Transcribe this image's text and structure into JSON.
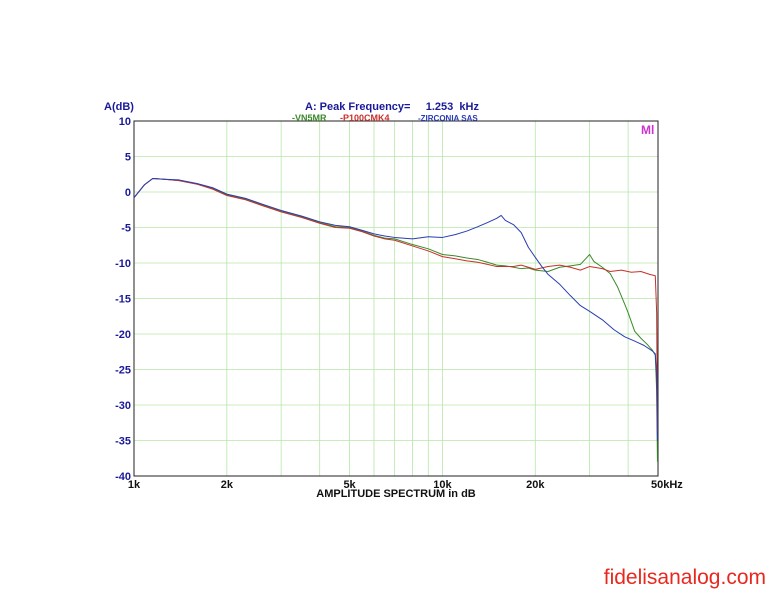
{
  "chart_data": {
    "type": "line",
    "title": "A: Peak Frequency=     1.253  kHz",
    "ylabel": "A(dB)",
    "xlabel": "AMPLITUDE SPECTRUM in dB",
    "x_scale": "log",
    "xlim": [
      1000,
      50000
    ],
    "ylim": [
      -40,
      10
    ],
    "x_ticks": [
      {
        "value": 1000,
        "label": "1k"
      },
      {
        "value": 2000,
        "label": "2k"
      },
      {
        "value": 5000,
        "label": "5k"
      },
      {
        "value": 10000,
        "label": "10k"
      },
      {
        "value": 20000,
        "label": "20k"
      },
      {
        "value": 50000,
        "label": "50kHz"
      }
    ],
    "y_ticks": [
      10,
      5,
      0,
      -5,
      -10,
      -15,
      -20,
      -25,
      -30,
      -35,
      -40
    ],
    "x_minor_ticks": [
      3000,
      4000,
      6000,
      7000,
      8000,
      9000,
      30000,
      40000
    ],
    "grid": true,
    "corner_label": "Ml",
    "series": [
      {
        "name": "-VN5MR",
        "color": "#3a8a2a",
        "points": [
          [
            1000,
            -0.8
          ],
          [
            1080,
            1.0
          ],
          [
            1150,
            1.9
          ],
          [
            1253,
            1.8
          ],
          [
            1400,
            1.6
          ],
          [
            1600,
            1.1
          ],
          [
            1800,
            0.5
          ],
          [
            2000,
            -0.4
          ],
          [
            2300,
            -1.0
          ],
          [
            2600,
            -1.8
          ],
          [
            3000,
            -2.7
          ],
          [
            3500,
            -3.5
          ],
          [
            4000,
            -4.3
          ],
          [
            4500,
            -4.9
          ],
          [
            5000,
            -5.0
          ],
          [
            5500,
            -5.5
          ],
          [
            6000,
            -6.1
          ],
          [
            6500,
            -6.5
          ],
          [
            7000,
            -6.6
          ],
          [
            8000,
            -7.4
          ],
          [
            9000,
            -8.0
          ],
          [
            10000,
            -8.8
          ],
          [
            11000,
            -9.0
          ],
          [
            12000,
            -9.3
          ],
          [
            13000,
            -9.5
          ],
          [
            14000,
            -9.9
          ],
          [
            15000,
            -10.3
          ],
          [
            16000,
            -10.4
          ],
          [
            17000,
            -10.6
          ],
          [
            18000,
            -10.8
          ],
          [
            19000,
            -10.7
          ],
          [
            20000,
            -11.0
          ],
          [
            22000,
            -11.2
          ],
          [
            24000,
            -10.6
          ],
          [
            26000,
            -10.4
          ],
          [
            28000,
            -10.2
          ],
          [
            29000,
            -9.5
          ],
          [
            30000,
            -8.8
          ],
          [
            31000,
            -9.8
          ],
          [
            33000,
            -10.6
          ],
          [
            35000,
            -11.5
          ],
          [
            37000,
            -13.4
          ],
          [
            39000,
            -15.8
          ],
          [
            40000,
            -17.0
          ],
          [
            42000,
            -19.6
          ],
          [
            44000,
            -20.6
          ],
          [
            46000,
            -21.4
          ],
          [
            48000,
            -22.3
          ],
          [
            49000,
            -23.0
          ],
          [
            49500,
            -28.0
          ],
          [
            49800,
            -38.0
          ]
        ]
      },
      {
        "name": "-P100CMK4",
        "color": "#c8302a",
        "points": [
          [
            1000,
            -0.8
          ],
          [
            1080,
            1.0
          ],
          [
            1150,
            1.9
          ],
          [
            1253,
            1.8
          ],
          [
            1400,
            1.6
          ],
          [
            1600,
            1.1
          ],
          [
            1800,
            0.4
          ],
          [
            2000,
            -0.5
          ],
          [
            2300,
            -1.1
          ],
          [
            2600,
            -1.9
          ],
          [
            3000,
            -2.8
          ],
          [
            3500,
            -3.6
          ],
          [
            4000,
            -4.4
          ],
          [
            4500,
            -5.0
          ],
          [
            5000,
            -5.1
          ],
          [
            5500,
            -5.6
          ],
          [
            6000,
            -6.2
          ],
          [
            6500,
            -6.6
          ],
          [
            7000,
            -6.8
          ],
          [
            8000,
            -7.6
          ],
          [
            9000,
            -8.3
          ],
          [
            10000,
            -9.1
          ],
          [
            11000,
            -9.4
          ],
          [
            12000,
            -9.7
          ],
          [
            13000,
            -9.9
          ],
          [
            14000,
            -10.2
          ],
          [
            15000,
            -10.5
          ],
          [
            16000,
            -10.5
          ],
          [
            17000,
            -10.5
          ],
          [
            18000,
            -10.3
          ],
          [
            19000,
            -10.6
          ],
          [
            20000,
            -10.9
          ],
          [
            22000,
            -10.5
          ],
          [
            24000,
            -10.3
          ],
          [
            26000,
            -10.6
          ],
          [
            28000,
            -11.0
          ],
          [
            30000,
            -10.5
          ],
          [
            33000,
            -10.8
          ],
          [
            35000,
            -11.2
          ],
          [
            38000,
            -11.0
          ],
          [
            41000,
            -11.3
          ],
          [
            44000,
            -11.2
          ],
          [
            47000,
            -11.6
          ],
          [
            49000,
            -11.8
          ],
          [
            49500,
            -17.0
          ],
          [
            49800,
            -34.0
          ]
        ]
      },
      {
        "name": "-ZIRCONIA SAS",
        "color": "#2a3cb4",
        "points": [
          [
            1000,
            -0.8
          ],
          [
            1080,
            1.0
          ],
          [
            1150,
            1.9
          ],
          [
            1253,
            1.8
          ],
          [
            1400,
            1.7
          ],
          [
            1600,
            1.2
          ],
          [
            1800,
            0.6
          ],
          [
            2000,
            -0.3
          ],
          [
            2300,
            -0.9
          ],
          [
            2600,
            -1.7
          ],
          [
            3000,
            -2.6
          ],
          [
            3500,
            -3.4
          ],
          [
            4000,
            -4.2
          ],
          [
            4500,
            -4.7
          ],
          [
            5000,
            -4.9
          ],
          [
            5500,
            -5.4
          ],
          [
            6000,
            -5.9
          ],
          [
            6500,
            -6.2
          ],
          [
            7000,
            -6.4
          ],
          [
            8000,
            -6.6
          ],
          [
            9000,
            -6.3
          ],
          [
            10000,
            -6.4
          ],
          [
            11000,
            -6.0
          ],
          [
            12000,
            -5.5
          ],
          [
            13000,
            -4.9
          ],
          [
            14000,
            -4.3
          ],
          [
            15000,
            -3.7
          ],
          [
            15500,
            -3.3
          ],
          [
            16000,
            -4.0
          ],
          [
            17000,
            -4.6
          ],
          [
            18000,
            -5.7
          ],
          [
            19000,
            -7.8
          ],
          [
            20000,
            -9.2
          ],
          [
            21000,
            -10.5
          ],
          [
            22000,
            -11.6
          ],
          [
            24000,
            -13.0
          ],
          [
            26000,
            -14.6
          ],
          [
            28000,
            -16.0
          ],
          [
            30000,
            -16.8
          ],
          [
            33000,
            -18.0
          ],
          [
            36000,
            -19.4
          ],
          [
            39000,
            -20.4
          ],
          [
            42000,
            -21.0
          ],
          [
            45000,
            -21.6
          ],
          [
            48000,
            -22.4
          ],
          [
            49000,
            -22.8
          ],
          [
            49500,
            -26.0
          ],
          [
            49800,
            -35.0
          ]
        ]
      }
    ]
  },
  "watermark": "fidelisanalog.com"
}
